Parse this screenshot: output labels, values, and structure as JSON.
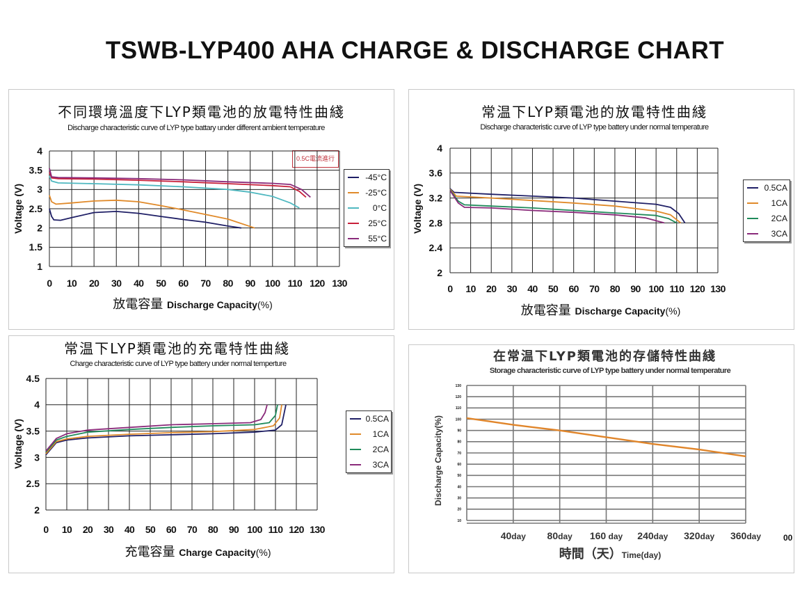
{
  "title": "TSWB-LYP400 AHA CHARGE & DISCHARGE CHART",
  "stray_label": "00",
  "chart_data": [
    {
      "type": "line",
      "title": "不同環境溫度下LYP類電池的放電特性曲綫",
      "subtitle": "Discharge characteristic curve of LYP type battary under different ambient temperature",
      "xlabel_zh": "放電容量",
      "xlabel": "Discharge Capacity",
      "xlabel_unit": "(%)",
      "ylabel": "Voltage (V)",
      "annotation": "0.5C電流進行",
      "xlim": [
        0,
        130
      ],
      "ylim": [
        1,
        4
      ],
      "xticks": [
        "0",
        "10",
        "20",
        "30",
        "40",
        "50",
        "60",
        "70",
        "80",
        "90",
        "100",
        "110",
        "120",
        "130"
      ],
      "yticks": [
        "1",
        "1.5",
        "2",
        "2.5",
        "3",
        "3.5",
        "4"
      ],
      "grid": true,
      "legend": "right",
      "series": [
        {
          "name": "-45°C",
          "color": "#1f1f66",
          "points": [
            [
              0,
              2.5
            ],
            [
              1,
              2.3
            ],
            [
              2,
              2.21
            ],
            [
              5,
              2.2
            ],
            [
              10,
              2.27
            ],
            [
              20,
              2.4
            ],
            [
              30,
              2.43
            ],
            [
              40,
              2.38
            ],
            [
              50,
              2.3
            ],
            [
              60,
              2.22
            ],
            [
              70,
              2.15
            ],
            [
              80,
              2.05
            ],
            [
              86,
              2.0
            ]
          ]
        },
        {
          "name": "-25°C",
          "color": "#e08a2a",
          "points": [
            [
              0,
              2.85
            ],
            [
              1,
              2.68
            ],
            [
              3,
              2.62
            ],
            [
              10,
              2.65
            ],
            [
              20,
              2.7
            ],
            [
              30,
              2.72
            ],
            [
              40,
              2.68
            ],
            [
              50,
              2.58
            ],
            [
              60,
              2.47
            ],
            [
              70,
              2.35
            ],
            [
              80,
              2.23
            ],
            [
              92,
              2.0
            ]
          ]
        },
        {
          "name": "0°C",
          "color": "#4fb8c0",
          "points": [
            [
              0,
              3.35
            ],
            [
              1,
              3.22
            ],
            [
              4,
              3.17
            ],
            [
              20,
              3.15
            ],
            [
              40,
              3.12
            ],
            [
              60,
              3.07
            ],
            [
              80,
              3.0
            ],
            [
              90,
              2.93
            ],
            [
              100,
              2.82
            ],
            [
              108,
              2.65
            ],
            [
              112,
              2.52
            ]
          ]
        },
        {
          "name": "25°C",
          "color": "#c8203a",
          "points": [
            [
              0,
              3.45
            ],
            [
              1,
              3.3
            ],
            [
              4,
              3.28
            ],
            [
              20,
              3.27
            ],
            [
              40,
              3.24
            ],
            [
              60,
              3.2
            ],
            [
              80,
              3.15
            ],
            [
              100,
              3.1
            ],
            [
              108,
              3.07
            ],
            [
              112,
              2.95
            ],
            [
              115,
              2.8
            ]
          ]
        },
        {
          "name": "55°C",
          "color": "#8a2a7a",
          "points": [
            [
              0,
              3.55
            ],
            [
              1,
              3.33
            ],
            [
              4,
              3.31
            ],
            [
              20,
              3.3
            ],
            [
              40,
              3.28
            ],
            [
              60,
              3.25
            ],
            [
              80,
              3.2
            ],
            [
              100,
              3.16
            ],
            [
              108,
              3.13
            ],
            [
              113,
              3.0
            ],
            [
              117,
              2.8
            ]
          ]
        }
      ]
    },
    {
      "type": "line",
      "title": "常温下LYP類電池的放電特性曲綫",
      "subtitle": "Discharge characteristic curve of LYP  type battery under normal temperature",
      "xlabel_zh": "放電容量",
      "xlabel": "Discharge Capacity",
      "xlabel_unit": "(%)",
      "ylabel": "Voltage (V)",
      "xlim": [
        0,
        130
      ],
      "ylim": [
        2,
        4
      ],
      "xticks": [
        "0",
        "10",
        "20",
        "30",
        "40",
        "50",
        "60",
        "70",
        "80",
        "90",
        "100",
        "110",
        "120",
        "130"
      ],
      "yticks": [
        "2",
        "2.4",
        "2.8",
        "3.2",
        "3.6",
        "4"
      ],
      "grid": true,
      "legend": "right",
      "series": [
        {
          "name": "0.5CA",
          "color": "#1f1f66",
          "points": [
            [
              0,
              3.35
            ],
            [
              2,
              3.29
            ],
            [
              20,
              3.26
            ],
            [
              40,
              3.23
            ],
            [
              60,
              3.2
            ],
            [
              80,
              3.15
            ],
            [
              100,
              3.1
            ],
            [
              107,
              3.05
            ],
            [
              111,
              2.95
            ],
            [
              114,
              2.8
            ]
          ]
        },
        {
          "name": "1CA",
          "color": "#e08a2a",
          "points": [
            [
              0,
              3.34
            ],
            [
              3,
              3.23
            ],
            [
              20,
              3.2
            ],
            [
              40,
              3.16
            ],
            [
              60,
              3.12
            ],
            [
              80,
              3.07
            ],
            [
              100,
              2.99
            ],
            [
              107,
              2.93
            ],
            [
              112,
              2.8
            ]
          ]
        },
        {
          "name": "2CA",
          "color": "#1f8a5a",
          "points": [
            [
              0,
              3.33
            ],
            [
              4,
              3.15
            ],
            [
              7,
              3.09
            ],
            [
              20,
              3.07
            ],
            [
              40,
              3.04
            ],
            [
              60,
              3.0
            ],
            [
              80,
              2.96
            ],
            [
              100,
              2.92
            ],
            [
              106,
              2.87
            ],
            [
              110,
              2.8
            ]
          ]
        },
        {
          "name": "3CA",
          "color": "#8a2a7a",
          "points": [
            [
              0,
              3.32
            ],
            [
              4,
              3.12
            ],
            [
              7,
              3.05
            ],
            [
              20,
              3.04
            ],
            [
              40,
              3.0
            ],
            [
              60,
              2.97
            ],
            [
              80,
              2.93
            ],
            [
              95,
              2.88
            ],
            [
              104,
              2.8
            ]
          ]
        }
      ]
    },
    {
      "type": "line",
      "title": "常温下LYP類電池的充電特性曲綫",
      "subtitle": "Charge characteristic curve of LYP type battery under normal temperture",
      "xlabel_zh": "充電容量",
      "xlabel": "Charge Capacity",
      "xlabel_unit": "(%)",
      "ylabel": "Voltage (V)",
      "xlim": [
        0,
        130
      ],
      "ylim": [
        2,
        4.5
      ],
      "xticks": [
        "0",
        "10",
        "20",
        "30",
        "40",
        "50",
        "60",
        "70",
        "80",
        "90",
        "100",
        "110",
        "120",
        "130"
      ],
      "yticks": [
        "2",
        "2.5",
        "3",
        "3.5",
        "4",
        "4.5"
      ],
      "grid": true,
      "legend": "right",
      "series": [
        {
          "name": "0.5CA",
          "color": "#1f1f66",
          "points": [
            [
              0,
              3.05
            ],
            [
              5,
              3.28
            ],
            [
              10,
              3.33
            ],
            [
              20,
              3.37
            ],
            [
              40,
              3.41
            ],
            [
              60,
              3.43
            ],
            [
              80,
              3.45
            ],
            [
              100,
              3.48
            ],
            [
              110,
              3.52
            ],
            [
              113,
              3.62
            ],
            [
              115,
              4.0
            ]
          ]
        },
        {
          "name": "1CA",
          "color": "#e08a2a",
          "points": [
            [
              0,
              3.07
            ],
            [
              5,
              3.3
            ],
            [
              10,
              3.35
            ],
            [
              20,
              3.4
            ],
            [
              40,
              3.44
            ],
            [
              60,
              3.47
            ],
            [
              80,
              3.49
            ],
            [
              100,
              3.53
            ],
            [
              109,
              3.6
            ],
            [
              112,
              3.75
            ],
            [
              113,
              4.0
            ]
          ]
        },
        {
          "name": "2CA",
          "color": "#1f8a5a",
          "points": [
            [
              0,
              3.1
            ],
            [
              5,
              3.33
            ],
            [
              10,
              3.4
            ],
            [
              20,
              3.48
            ],
            [
              40,
              3.53
            ],
            [
              60,
              3.57
            ],
            [
              80,
              3.6
            ],
            [
              100,
              3.62
            ],
            [
              107,
              3.66
            ],
            [
              110,
              3.8
            ],
            [
              111,
              4.0
            ]
          ]
        },
        {
          "name": "3CA",
          "color": "#8a2a7a",
          "points": [
            [
              0,
              3.12
            ],
            [
              5,
              3.36
            ],
            [
              10,
              3.45
            ],
            [
              20,
              3.52
            ],
            [
              40,
              3.57
            ],
            [
              60,
              3.62
            ],
            [
              80,
              3.64
            ],
            [
              98,
              3.66
            ],
            [
              103,
              3.72
            ],
            [
              105,
              3.85
            ],
            [
              106,
              4.0
            ]
          ]
        }
      ]
    },
    {
      "type": "line",
      "title": "在常温下LYP類電池的存儲特性曲綫",
      "subtitle": "Storage characteristic curve of LYP type battery under normal temperature",
      "xlabel_zh": "時間（天）",
      "xlabel": "Time(day)",
      "xlabel_unit": "",
      "ylabel": "Discharge Capacity(%)",
      "ylim": [
        10,
        130
      ],
      "xticks": [
        {
          "num": "40",
          "unit": "day"
        },
        {
          "num": "80",
          "unit": "day"
        },
        {
          "num": "160",
          "unit": " day"
        },
        {
          "num": "240",
          "unit": "day"
        },
        {
          "num": "320",
          "unit": "day"
        },
        {
          "num": "360",
          "unit": "day"
        }
      ],
      "yticks": [
        "10",
        "20",
        "30",
        "40",
        "50",
        "60",
        "70",
        "80",
        "90",
        "100",
        "110",
        "120",
        "130"
      ],
      "grid": true,
      "series": [
        {
          "color": "#e0852a",
          "x": [
            "0",
            "40",
            "80",
            "160",
            "240",
            "320",
            "360"
          ],
          "values": [
            101,
            95,
            90,
            84,
            78,
            73,
            67
          ]
        }
      ]
    }
  ]
}
